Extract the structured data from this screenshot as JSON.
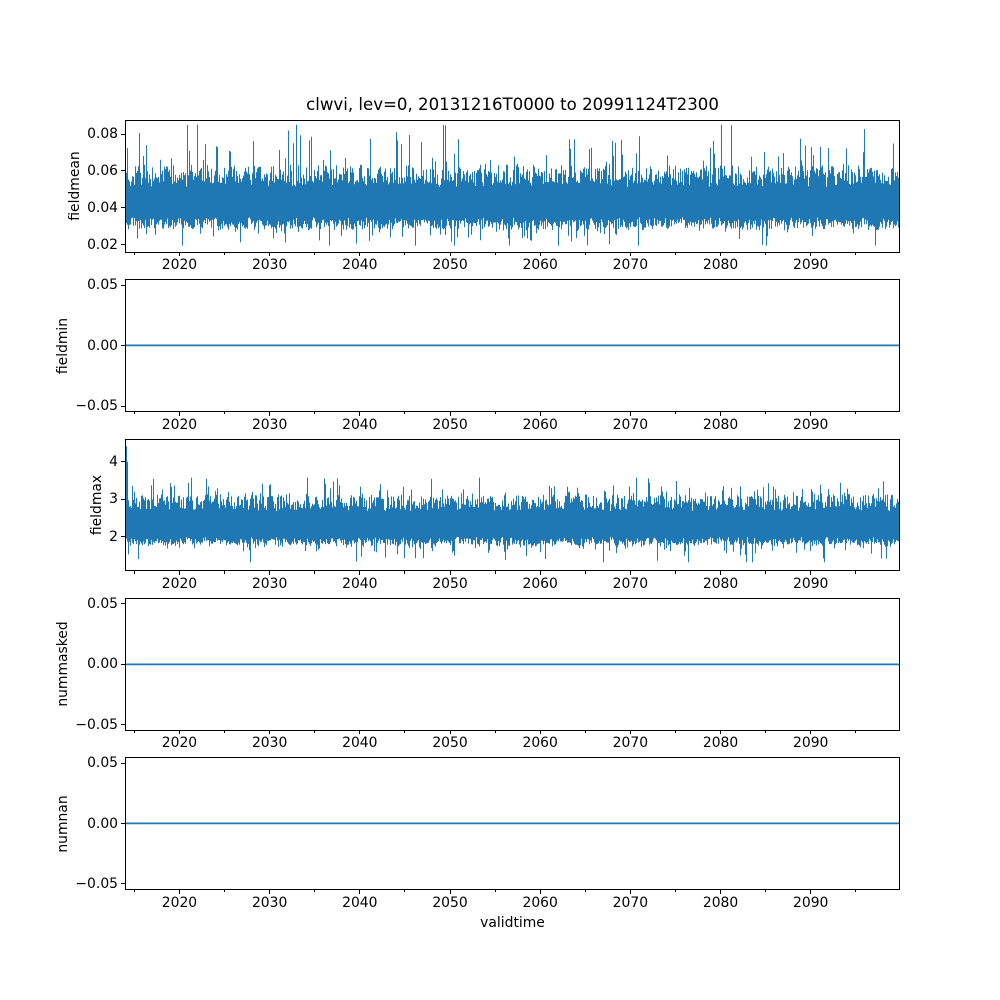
{
  "figure": {
    "title": "clwvi, lev=0, 20131216T0000 to 20991124T2300",
    "xlabel": "validtime",
    "background_color": "#ffffff",
    "line_color": "#1f77b4",
    "axis_color": "#000000"
  },
  "x_axis": {
    "label": "validtime",
    "range": [
      2013.96,
      2099.9
    ],
    "major_ticks": [
      2020,
      2030,
      2040,
      2050,
      2060,
      2070,
      2080,
      2090
    ],
    "major_tick_labels": [
      "2020",
      "2030",
      "2040",
      "2050",
      "2060",
      "2070",
      "2080",
      "2090"
    ],
    "minor_ticks": [
      2015,
      2025,
      2035,
      2045,
      2055,
      2065,
      2075,
      2085,
      2095
    ]
  },
  "chart_data": [
    {
      "type": "line",
      "ylabel": "fieldmean",
      "ylim": [
        0.0156,
        0.0876
      ],
      "yticks": [
        0.02,
        0.04,
        0.06,
        0.08
      ],
      "ytick_labels": [
        "0.02",
        "0.04",
        "0.06",
        "0.08"
      ],
      "series": [
        {
          "name": "fieldmean",
          "style": "dense-noise",
          "color": "#1f77b4",
          "solid_core_band": [
            0.034,
            0.052
          ],
          "typical_envelope": [
            0.028,
            0.063
          ],
          "min": 0.019,
          "max": 0.0855,
          "seed": 42
        }
      ]
    },
    {
      "type": "line",
      "ylabel": "fieldmin",
      "ylim": [
        -0.055,
        0.055
      ],
      "yticks": [
        -0.05,
        0.0,
        0.05
      ],
      "ytick_labels": [
        "−0.05",
        "0.00",
        "0.05"
      ],
      "series": [
        {
          "name": "fieldmin",
          "style": "constant",
          "color": "#1f77b4",
          "value": 0.0
        }
      ]
    },
    {
      "type": "line",
      "ylabel": "fieldmax",
      "ylim": [
        1.07,
        4.62
      ],
      "yticks": [
        2,
        3,
        4
      ],
      "ytick_labels": [
        "2",
        "3",
        "4"
      ],
      "series": [
        {
          "name": "fieldmax",
          "style": "dense-noise",
          "color": "#1f77b4",
          "solid_core_band": [
            1.96,
            2.72
          ],
          "typical_envelope": [
            1.75,
            3.15
          ],
          "min": 1.3,
          "max": 3.6,
          "start_spike": 4.45,
          "seed": 7
        }
      ]
    },
    {
      "type": "line",
      "ylabel": "nummasked",
      "ylim": [
        -0.055,
        0.055
      ],
      "yticks": [
        -0.05,
        0.0,
        0.05
      ],
      "ytick_labels": [
        "−0.05",
        "0.00",
        "0.05"
      ],
      "series": [
        {
          "name": "nummasked",
          "style": "constant",
          "color": "#1f77b4",
          "value": 0.0
        }
      ]
    },
    {
      "type": "line",
      "ylabel": "numnan",
      "ylim": [
        -0.055,
        0.055
      ],
      "yticks": [
        -0.05,
        0.0,
        0.05
      ],
      "ytick_labels": [
        "−0.05",
        "0.00",
        "0.05"
      ],
      "series": [
        {
          "name": "numnan",
          "style": "constant",
          "color": "#1f77b4",
          "value": 0.0
        }
      ]
    }
  ]
}
